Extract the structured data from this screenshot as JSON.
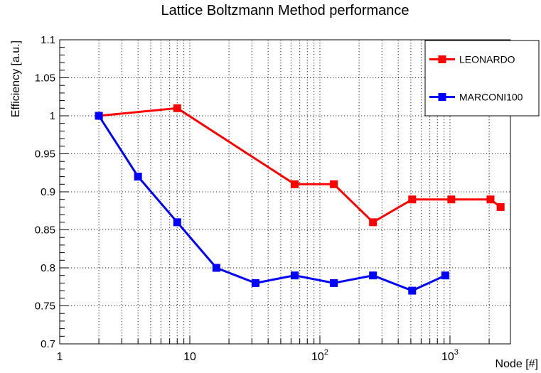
{
  "chart_data": {
    "type": "line",
    "title": "Lattice Boltzmann Method performance",
    "xlabel": "Node [#]",
    "ylabel": "Efficiency [a.u.]",
    "x_scale": "log",
    "xlim": [
      1,
      2915
    ],
    "ylim": [
      0.7,
      1.1
    ],
    "grid": true,
    "legend_position": "top-right",
    "y_ticks": [
      0.7,
      0.75,
      0.8,
      0.85,
      0.9,
      0.95,
      1.0,
      1.05,
      1.1
    ],
    "y_tick_labels": [
      "0.7",
      "0.75",
      "0.8",
      "0.85",
      "0.9",
      "0.95",
      "1",
      "1.05",
      "1.1"
    ],
    "y_minor_step": 0.01,
    "x_major_ticks": [
      1,
      10,
      100,
      1000
    ],
    "x_tick_labels": [
      {
        "text": "1",
        "exp": null
      },
      {
        "text": "10",
        "exp": null
      },
      {
        "text": "10",
        "exp": "2"
      },
      {
        "text": "10",
        "exp": "3"
      }
    ],
    "series": [
      {
        "name": "LEONARDO",
        "color": "#ff0000",
        "marker": "square",
        "points": [
          [
            2,
            1.0
          ],
          [
            8,
            1.01
          ],
          [
            64,
            0.91
          ],
          [
            128,
            0.91
          ],
          [
            256,
            0.86
          ],
          [
            512,
            0.89
          ],
          [
            1024,
            0.89
          ],
          [
            2048,
            0.89
          ],
          [
            2450,
            0.88
          ]
        ]
      },
      {
        "name": "MARCONI100",
        "color": "#0000ff",
        "marker": "square",
        "points": [
          [
            2,
            1.0
          ],
          [
            4,
            0.92
          ],
          [
            8,
            0.86
          ],
          [
            16,
            0.8
          ],
          [
            32,
            0.78
          ],
          [
            64,
            0.79
          ],
          [
            128,
            0.78
          ],
          [
            256,
            0.79
          ],
          [
            512,
            0.77
          ],
          [
            920,
            0.79
          ]
        ]
      }
    ],
    "colors": {
      "axis": "#000000",
      "grid": "#222222",
      "background": "#ffffff",
      "text": "#000000"
    }
  }
}
